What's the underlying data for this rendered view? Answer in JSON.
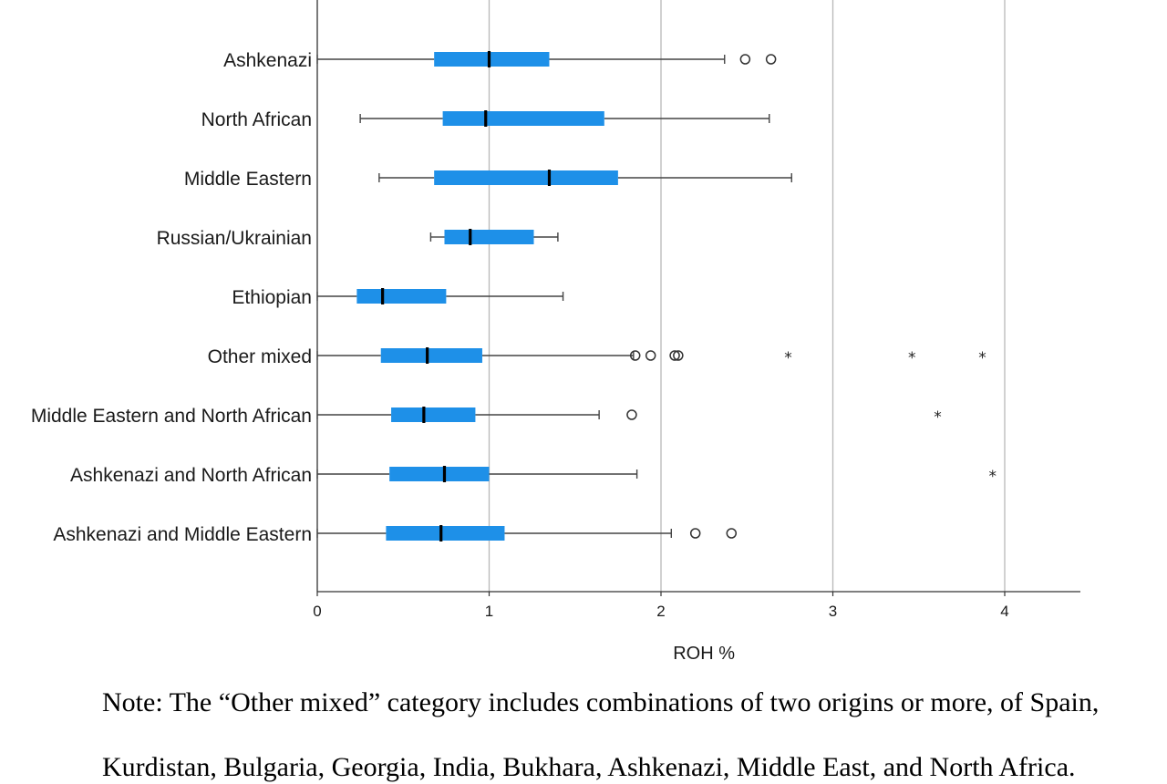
{
  "chart_data": {
    "type": "boxplot",
    "orientation": "horizontal",
    "xlabel": "ROH %",
    "xlim": [
      0,
      4.44
    ],
    "xticks": [
      0,
      1,
      2,
      3,
      4
    ],
    "grid": "vertical gridlines at x ticks",
    "box_color": "#1e90e8",
    "categories": [
      "Ashkenazi",
      "North African",
      "Middle Eastern",
      "Russian/Ukrainian",
      "Ethiopian",
      "Other mixed",
      "Middle Eastern and North African",
      "Ashkenazi and North African",
      "Ashkenazi and Middle Eastern"
    ],
    "boxes": [
      {
        "name": "Ashkenazi",
        "whisker_low": 0.0,
        "q1": 0.68,
        "median": 1.0,
        "q3": 1.35,
        "whisker_high": 2.37,
        "outliers": [
          2.49,
          2.64
        ],
        "extremes": []
      },
      {
        "name": "North African",
        "whisker_low": 0.25,
        "q1": 0.73,
        "median": 0.98,
        "q3": 1.67,
        "whisker_high": 2.63,
        "outliers": [],
        "extremes": []
      },
      {
        "name": "Middle Eastern",
        "whisker_low": 0.36,
        "q1": 0.68,
        "median": 1.35,
        "q3": 1.75,
        "whisker_high": 2.76,
        "outliers": [],
        "extremes": []
      },
      {
        "name": "Russian/Ukrainian",
        "whisker_low": 0.66,
        "q1": 0.74,
        "median": 0.89,
        "q3": 1.26,
        "whisker_high": 1.4,
        "outliers": [],
        "extremes": []
      },
      {
        "name": "Ethiopian",
        "whisker_low": 0.0,
        "q1": 0.23,
        "median": 0.38,
        "q3": 0.75,
        "whisker_high": 1.43,
        "outliers": [],
        "extremes": []
      },
      {
        "name": "Other mixed",
        "whisker_low": 0.0,
        "q1": 0.37,
        "median": 0.64,
        "q3": 0.96,
        "whisker_high": 1.84,
        "outliers": [
          1.85,
          1.94,
          2.08,
          2.1
        ],
        "extremes": [
          2.74,
          3.46,
          3.87
        ]
      },
      {
        "name": "Middle Eastern and North African",
        "whisker_low": 0.0,
        "q1": 0.43,
        "median": 0.62,
        "q3": 0.92,
        "whisker_high": 1.64,
        "outliers": [
          1.83
        ],
        "extremes": [
          3.61
        ]
      },
      {
        "name": "Ashkenazi and North African",
        "whisker_low": 0.0,
        "q1": 0.42,
        "median": 0.74,
        "q3": 1.0,
        "whisker_high": 1.86,
        "outliers": [],
        "extremes": [
          3.93
        ]
      },
      {
        "name": "Ashkenazi and Middle Eastern",
        "whisker_low": 0.0,
        "q1": 0.4,
        "median": 0.72,
        "q3": 1.09,
        "whisker_high": 2.06,
        "outliers": [
          2.2,
          2.41
        ],
        "extremes": []
      }
    ]
  },
  "note": {
    "line1": "Note: The “Other mixed” category includes combinations of two origins or more, of Spain,",
    "line2": "Kurdistan, Bulgaria, Georgia, India, Bukhara, Ashkenazi, Middle East, and North Africa."
  }
}
